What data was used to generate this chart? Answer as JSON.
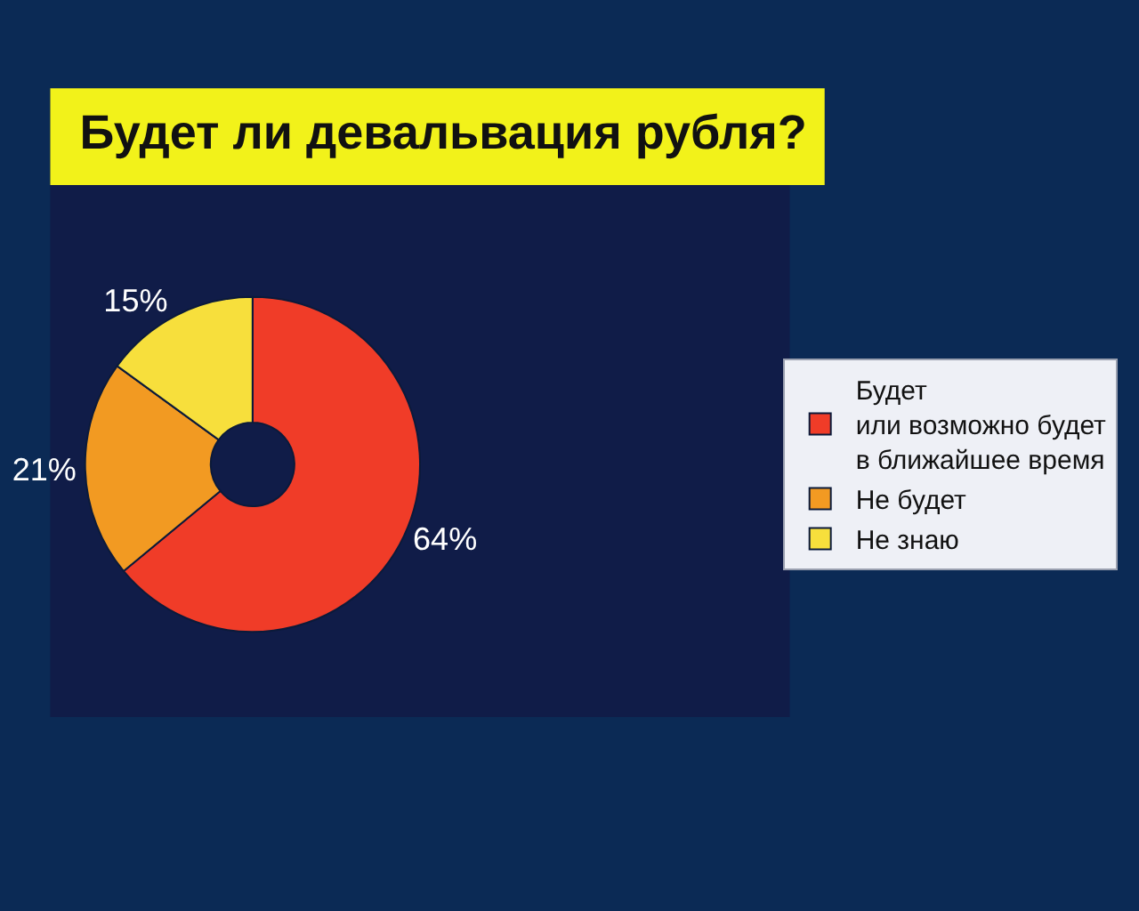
{
  "chart_data": {
    "type": "donut",
    "title": "Будет ли девальвация рубля?",
    "categories": [
      "Будет\nили возможно будет\nв ближайшее время",
      "Не будет",
      "Не знаю"
    ],
    "values": [
      64,
      21,
      15
    ],
    "colors": [
      "#f03c28",
      "#f29a22",
      "#f7df3c"
    ],
    "value_labels": [
      "64%",
      "21%",
      "15%"
    ],
    "legend": "right"
  }
}
